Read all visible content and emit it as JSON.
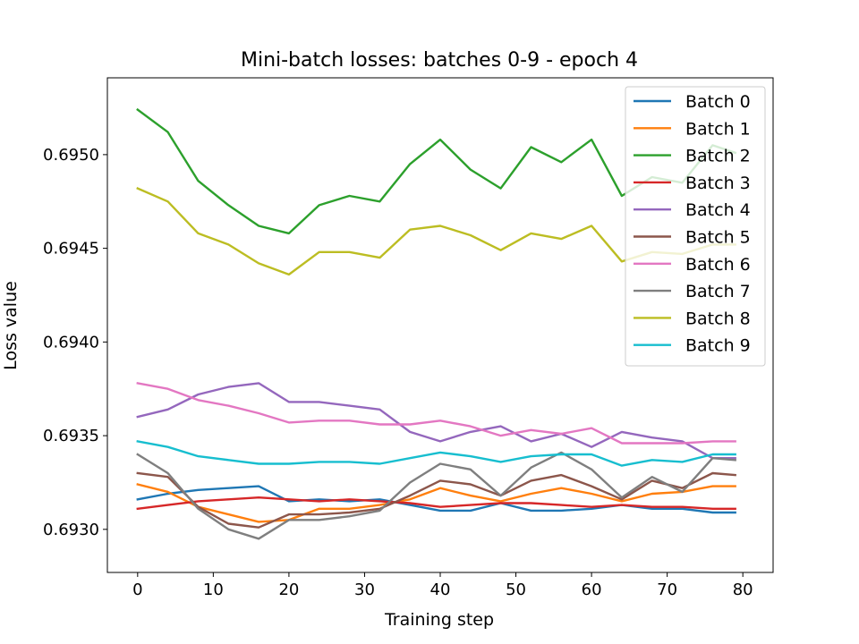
{
  "chart_data": {
    "type": "line",
    "title": "Mini-batch losses: batches 0-9 - epoch 4",
    "xlabel": "Training step",
    "ylabel": "Loss value",
    "xlim": [
      -4,
      84
    ],
    "ylim": [
      0.69277,
      0.69541
    ],
    "xticks": [
      0,
      10,
      20,
      30,
      40,
      50,
      60,
      70,
      80
    ],
    "xtick_labels": [
      "0",
      "10",
      "20",
      "30",
      "40",
      "50",
      "60",
      "70",
      "80"
    ],
    "yticks": [
      0.693,
      0.6935,
      0.694,
      0.6945,
      0.695
    ],
    "ytick_labels": [
      "0.6930",
      "0.6935",
      "0.6940",
      "0.6945",
      "0.6950"
    ],
    "grid": false,
    "legend_position": "top-right",
    "x": [
      0,
      4,
      8,
      12,
      16,
      20,
      24,
      28,
      32,
      36,
      40,
      44,
      48,
      52,
      56,
      60,
      64,
      68,
      72,
      76,
      79
    ],
    "series": [
      {
        "name": "Batch 0",
        "color": "#1f77b4",
        "values": [
          0.69316,
          0.69319,
          0.69321,
          0.69322,
          0.69323,
          0.69315,
          0.69316,
          0.69315,
          0.69316,
          0.69313,
          0.6931,
          0.6931,
          0.69314,
          0.6931,
          0.6931,
          0.69311,
          0.69313,
          0.69311,
          0.69311,
          0.69309,
          0.69309
        ]
      },
      {
        "name": "Batch 1",
        "color": "#ff7f0e",
        "values": [
          0.69324,
          0.6932,
          0.69312,
          0.69308,
          0.69304,
          0.69305,
          0.69311,
          0.69311,
          0.69313,
          0.69316,
          0.69322,
          0.69318,
          0.69315,
          0.69319,
          0.69322,
          0.69319,
          0.69315,
          0.69319,
          0.6932,
          0.69323,
          0.69323
        ]
      },
      {
        "name": "Batch 2",
        "color": "#2ca02c",
        "values": [
          0.69524,
          0.69512,
          0.69486,
          0.69473,
          0.69462,
          0.69458,
          0.69473,
          0.69478,
          0.69475,
          0.69495,
          0.69508,
          0.69492,
          0.69482,
          0.69504,
          0.69496,
          0.69508,
          0.69478,
          0.69488,
          0.69485,
          0.69505,
          0.69501
        ]
      },
      {
        "name": "Batch 3",
        "color": "#d62728",
        "values": [
          0.69311,
          0.69313,
          0.69315,
          0.69316,
          0.69317,
          0.69316,
          0.69315,
          0.69316,
          0.69315,
          0.69314,
          0.69312,
          0.69313,
          0.69314,
          0.69314,
          0.69313,
          0.69312,
          0.69313,
          0.69312,
          0.69312,
          0.69311,
          0.69311
        ]
      },
      {
        "name": "Batch 4",
        "color": "#9467bd",
        "values": [
          0.6936,
          0.69364,
          0.69372,
          0.69376,
          0.69378,
          0.69368,
          0.69368,
          0.69366,
          0.69364,
          0.69352,
          0.69347,
          0.69352,
          0.69355,
          0.69347,
          0.69351,
          0.69344,
          0.69352,
          0.69349,
          0.69347,
          0.69338,
          0.69338
        ]
      },
      {
        "name": "Batch 5",
        "color": "#8c564b",
        "values": [
          0.6933,
          0.69328,
          0.69312,
          0.69303,
          0.69301,
          0.69308,
          0.69308,
          0.69309,
          0.69311,
          0.69318,
          0.69326,
          0.69324,
          0.69318,
          0.69326,
          0.69329,
          0.69323,
          0.69316,
          0.69326,
          0.69322,
          0.6933,
          0.69329
        ]
      },
      {
        "name": "Batch 6",
        "color": "#e377c2",
        "values": [
          0.69378,
          0.69375,
          0.69369,
          0.69366,
          0.69362,
          0.69357,
          0.69358,
          0.69358,
          0.69356,
          0.69356,
          0.69358,
          0.69355,
          0.6935,
          0.69353,
          0.69351,
          0.69354,
          0.69346,
          0.69346,
          0.69346,
          0.69347,
          0.69347
        ]
      },
      {
        "name": "Batch 7",
        "color": "#7f7f7f",
        "values": [
          0.6934,
          0.6933,
          0.69311,
          0.693,
          0.69295,
          0.69305,
          0.69305,
          0.69307,
          0.6931,
          0.69325,
          0.69335,
          0.69332,
          0.69318,
          0.69333,
          0.69341,
          0.69332,
          0.69317,
          0.69328,
          0.6932,
          0.69338,
          0.69337
        ]
      },
      {
        "name": "Batch 8",
        "color": "#bcbd22",
        "values": [
          0.69482,
          0.69475,
          0.69458,
          0.69452,
          0.69442,
          0.69436,
          0.69448,
          0.69448,
          0.69445,
          0.6946,
          0.69462,
          0.69457,
          0.69449,
          0.69458,
          0.69455,
          0.69462,
          0.69443,
          0.69448,
          0.69447,
          0.69452,
          0.69452
        ]
      },
      {
        "name": "Batch 9",
        "color": "#17becf",
        "values": [
          0.69347,
          0.69344,
          0.69339,
          0.69337,
          0.69335,
          0.69335,
          0.69336,
          0.69336,
          0.69335,
          0.69338,
          0.69341,
          0.69339,
          0.69336,
          0.69339,
          0.6934,
          0.6934,
          0.69334,
          0.69337,
          0.69336,
          0.6934,
          0.6934
        ]
      }
    ]
  }
}
